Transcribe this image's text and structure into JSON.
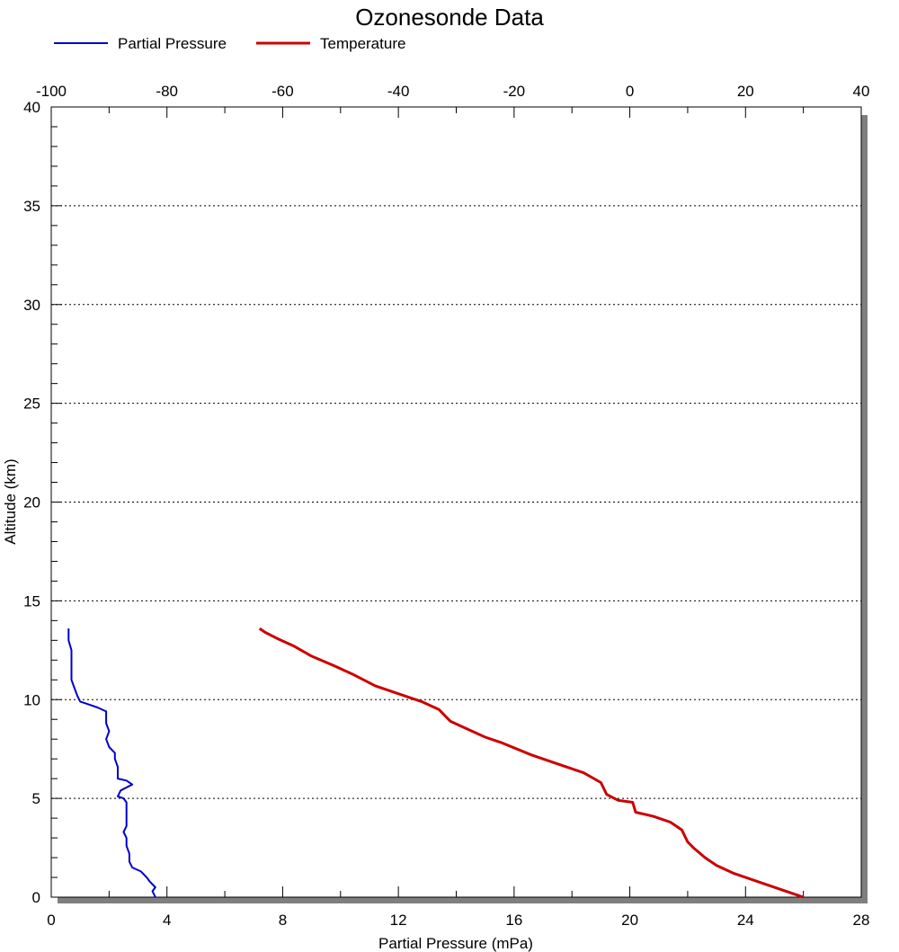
{
  "chart_data": {
    "type": "line",
    "title": "Ozonesonde Data",
    "xlabel": "Partial Pressure (mPa)",
    "ylabel": "Altitude (km)",
    "x_bottom": {
      "range": [
        0,
        28
      ],
      "ticks": [
        "0",
        "4",
        "8",
        "12",
        "16",
        "20",
        "24",
        "28"
      ],
      "tick_values": [
        0,
        4,
        8,
        12,
        16,
        20,
        24,
        28
      ]
    },
    "x_top": {
      "range": [
        -100,
        40
      ],
      "ticks": [
        "-100",
        "-80",
        "-60",
        "-40",
        "-20",
        "0",
        "20",
        "40"
      ],
      "tick_values": [
        -100,
        -80,
        -60,
        -40,
        -20,
        0,
        20,
        40
      ]
    },
    "y": {
      "range": [
        0,
        40
      ],
      "ticks": [
        "0",
        "5",
        "10",
        "15",
        "20",
        "25",
        "30",
        "35",
        "40"
      ],
      "tick_values": [
        0,
        5,
        10,
        15,
        20,
        25,
        30,
        35,
        40
      ]
    },
    "grid": "horizontal dotted",
    "legend": {
      "position": "top-left"
    },
    "series": [
      {
        "name": "Partial Pressure",
        "color": "#0000cc",
        "axis": "bottom",
        "points": [
          [
            3.6,
            0.0
          ],
          [
            3.5,
            0.3
          ],
          [
            3.6,
            0.5
          ],
          [
            3.4,
            0.8
          ],
          [
            3.3,
            1.0
          ],
          [
            3.1,
            1.3
          ],
          [
            2.8,
            1.5
          ],
          [
            2.7,
            1.8
          ],
          [
            2.7,
            2.2
          ],
          [
            2.6,
            2.6
          ],
          [
            2.6,
            3.0
          ],
          [
            2.5,
            3.3
          ],
          [
            2.6,
            3.6
          ],
          [
            2.6,
            4.0
          ],
          [
            2.6,
            4.4
          ],
          [
            2.6,
            4.8
          ],
          [
            2.5,
            5.0
          ],
          [
            2.3,
            5.1
          ],
          [
            2.4,
            5.4
          ],
          [
            2.8,
            5.7
          ],
          [
            2.6,
            5.9
          ],
          [
            2.3,
            6.0
          ],
          [
            2.3,
            6.3
          ],
          [
            2.3,
            6.6
          ],
          [
            2.2,
            7.0
          ],
          [
            2.2,
            7.3
          ],
          [
            2.0,
            7.6
          ],
          [
            1.9,
            8.0
          ],
          [
            2.0,
            8.4
          ],
          [
            1.9,
            8.8
          ],
          [
            1.9,
            9.2
          ],
          [
            1.9,
            9.4
          ],
          [
            1.6,
            9.6
          ],
          [
            1.2,
            9.8
          ],
          [
            1.0,
            9.9
          ],
          [
            0.9,
            10.2
          ],
          [
            0.8,
            10.6
          ],
          [
            0.7,
            11.0
          ],
          [
            0.7,
            11.5
          ],
          [
            0.7,
            12.0
          ],
          [
            0.7,
            12.5
          ],
          [
            0.6,
            13.0
          ],
          [
            0.6,
            13.6
          ]
        ]
      },
      {
        "name": "Temperature",
        "color": "#cc0000",
        "axis": "top",
        "points": [
          [
            30.0,
            0.0
          ],
          [
            27.0,
            0.3
          ],
          [
            22.0,
            0.8
          ],
          [
            18.0,
            1.2
          ],
          [
            15.0,
            1.6
          ],
          [
            13.0,
            2.0
          ],
          [
            11.0,
            2.5
          ],
          [
            10.0,
            2.8
          ],
          [
            9.0,
            3.4
          ],
          [
            7.0,
            3.8
          ],
          [
            4.0,
            4.1
          ],
          [
            1.0,
            4.3
          ],
          [
            0.5,
            4.8
          ],
          [
            -2.0,
            4.9
          ],
          [
            -4.0,
            5.2
          ],
          [
            -5.0,
            5.8
          ],
          [
            -8.0,
            6.3
          ],
          [
            -12.0,
            6.7
          ],
          [
            -17.0,
            7.2
          ],
          [
            -22.0,
            7.8
          ],
          [
            -25.0,
            8.1
          ],
          [
            -28.0,
            8.5
          ],
          [
            -31.0,
            8.9
          ],
          [
            -32.0,
            9.2
          ],
          [
            -33.0,
            9.5
          ],
          [
            -36.0,
            9.9
          ],
          [
            -40.0,
            10.3
          ],
          [
            -44.0,
            10.7
          ],
          [
            -48.0,
            11.3
          ],
          [
            -51.0,
            11.7
          ],
          [
            -55.0,
            12.2
          ],
          [
            -58.0,
            12.7
          ],
          [
            -61.0,
            13.1
          ],
          [
            -63.0,
            13.4
          ],
          [
            -64.0,
            13.6
          ]
        ]
      }
    ]
  }
}
